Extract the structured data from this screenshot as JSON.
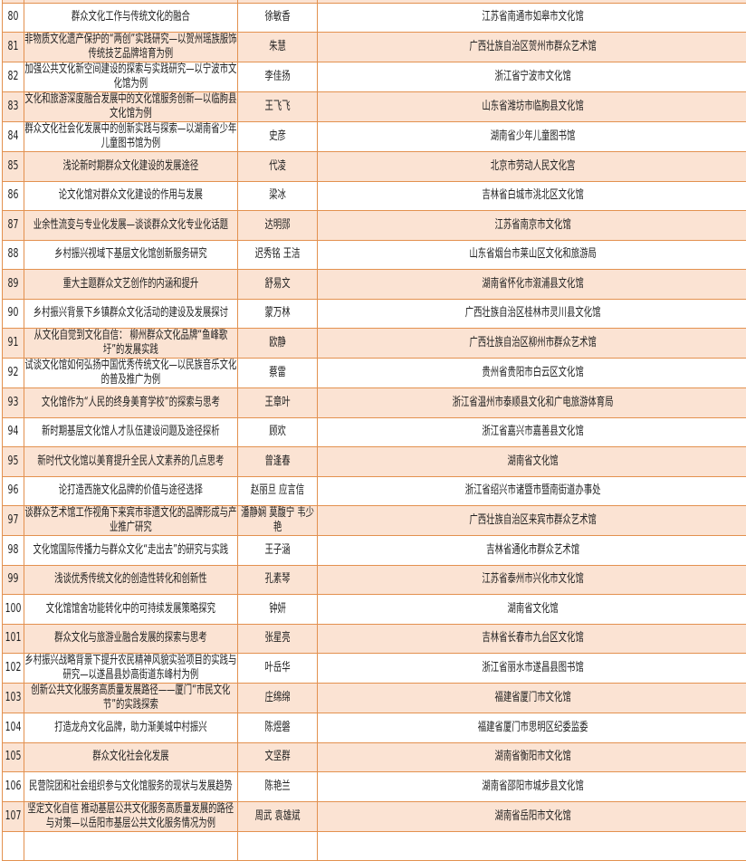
{
  "rows": [
    {
      "no": "",
      "title": "",
      "author": "",
      "org": ""
    },
    {
      "no": "80",
      "title": "群众文化工作与传统文化的融合",
      "author": "徐敏香",
      "org": "江苏省南通市如皋市文化馆"
    },
    {
      "no": "81",
      "title": "非物质文化遗产保护的“两创”实践研究—以贺州瑶族服饰传统技艺品牌培育为例",
      "author": "朱慧",
      "org": "广西壮族自治区贺州市群众艺术馆"
    },
    {
      "no": "82",
      "title": "加强公共文化新空间建设的探索与实践研究—以宁波市文化馆为例",
      "author": "李佳扬",
      "org": "浙江省宁波市文化馆"
    },
    {
      "no": "83",
      "title": "文化和旅游深度融合发展中的文化馆服务创新—以临朐县文化馆为例",
      "author": "王飞飞",
      "org": "山东省潍坊市临朐县文化馆"
    },
    {
      "no": "84",
      "title": "群众文化社会化发展中的创新实践与探索—以湖南省少年儿童图书馆为例",
      "author": "史彦",
      "org": "湖南省少年儿童图书馆"
    },
    {
      "no": "85",
      "title": "浅论新时期群众文化建设的发展途径",
      "author": "代凌",
      "org": "北京市劳动人民文化宫"
    },
    {
      "no": "86",
      "title": "论文化馆对群众文化建设的作用与发展",
      "author": "梁冰",
      "org": "吉林省白城市洮北区文化馆"
    },
    {
      "no": "87",
      "title": "业余性流变与专业化发展—谈谈群众文化专业化话题",
      "author": "达明郧",
      "org": "江苏省南京市文化馆"
    },
    {
      "no": "88",
      "title": "乡村振兴视域下基层文化馆创新服务研究",
      "author": "迟秀铭  王洁",
      "org": "山东省烟台市莱山区文化和旅游局"
    },
    {
      "no": "89",
      "title": "重大主题群众文艺创作的内涵和提升",
      "author": "舒易文",
      "org": "湖南省怀化市溆浦县文化馆"
    },
    {
      "no": "90",
      "title": "乡村振兴背景下乡镇群众文化活动的建设及发展探讨",
      "author": "蒙万林",
      "org": "广西壮族自治区桂林市灵川县文化馆"
    },
    {
      "no": "91",
      "title": "从文化自觉到文化自信：  柳州群众文化品牌“鱼峰歌圩”的发展实践",
      "author": "欧静",
      "org": "广西壮族自治区柳州市群众艺术馆"
    },
    {
      "no": "92",
      "title": "试谈文化馆如何弘扬中国优秀传统文化—以民族音乐文化的普及推广为例",
      "author": "蔡雷",
      "org": "贵州省贵阳市白云区文化馆"
    },
    {
      "no": "93",
      "title": "文化馆作为“人民的终身美育学校”的探索与思考",
      "author": "王章叶",
      "org": "浙江省温州市泰顺县文化和广电旅游体育局"
    },
    {
      "no": "94",
      "title": "新时期基层文化馆人才队伍建设问题及途径探析",
      "author": "顾欢",
      "org": "浙江省嘉兴市嘉善县文化馆"
    },
    {
      "no": "95",
      "title": "新时代文化馆以美育提升全民人文素养的几点思考",
      "author": "曾逢春",
      "org": "湖南省文化馆"
    },
    {
      "no": "96",
      "title": "论打造西施文化品牌的价值与途径选择",
      "author": "赵丽旦  应言信",
      "org": "浙江省绍兴市诸暨市暨南街道办事处"
    },
    {
      "no": "97",
      "title": "谈群众艺术馆工作视角下来宾市非遗文化的品牌形成与产业推广研究",
      "author": "潘静娴  莫馥宁  韦少艳",
      "org": "广西壮族自治区来宾市群众艺术馆"
    },
    {
      "no": "98",
      "title": "文化馆国际传播力与群众文化“走出去”的研究与实践",
      "author": "王子涵",
      "org": "吉林省通化市群众艺术馆"
    },
    {
      "no": "99",
      "title": "浅谈优秀传统文化的创造性转化和创新性",
      "author": "孔素琴",
      "org": "江苏省泰州市兴化市文化馆"
    },
    {
      "no": "100",
      "title": "文化馆馆舍功能转化中的可持续发展策略探究",
      "author": "钟妍",
      "org": "湖南省文化馆"
    },
    {
      "no": "101",
      "title": "群众文化与旅游业融合发展的探索与思考",
      "author": "张星亮",
      "org": "吉林省长春市九台区文化馆"
    },
    {
      "no": "102",
      "title": "乡村振兴战略背景下提升农民精神风貌实验项目的实践与研究—以遂昌县妙高街道东峰村为例",
      "author": "叶岳华",
      "org": "浙江省丽水市遂昌县图书馆"
    },
    {
      "no": "103",
      "title": "创新公共文化服务高质量发展路径——厦门“市民文化节”的实践探索",
      "author": "庄绵绵",
      "org": "福建省厦门市文化馆"
    },
    {
      "no": "104",
      "title": "打造龙舟文化品牌，助力渐美城中村振兴",
      "author": "陈煜磐",
      "org": "福建省厦门市思明区纪委监委"
    },
    {
      "no": "105",
      "title": "群众文化社会化发展",
      "author": "文坚群",
      "org": "湖南省衡阳市文化馆"
    },
    {
      "no": "106",
      "title": "民营院团和社会组织参与文化馆服务的现状与发展趋势",
      "author": "陈艳兰",
      "org": "湖南省邵阳市城步县文化馆"
    },
    {
      "no": "107",
      "title": "坚定文化自信  推动基层公共文化服务高质量发展的路径与对策—以岳阳市基层公共文化服务情况为例",
      "author": "周武  袁雄斌",
      "org": "湖南省岳阳市文化馆"
    },
    {
      "no": "",
      "title": "",
      "author": "",
      "org": ""
    }
  ]
}
